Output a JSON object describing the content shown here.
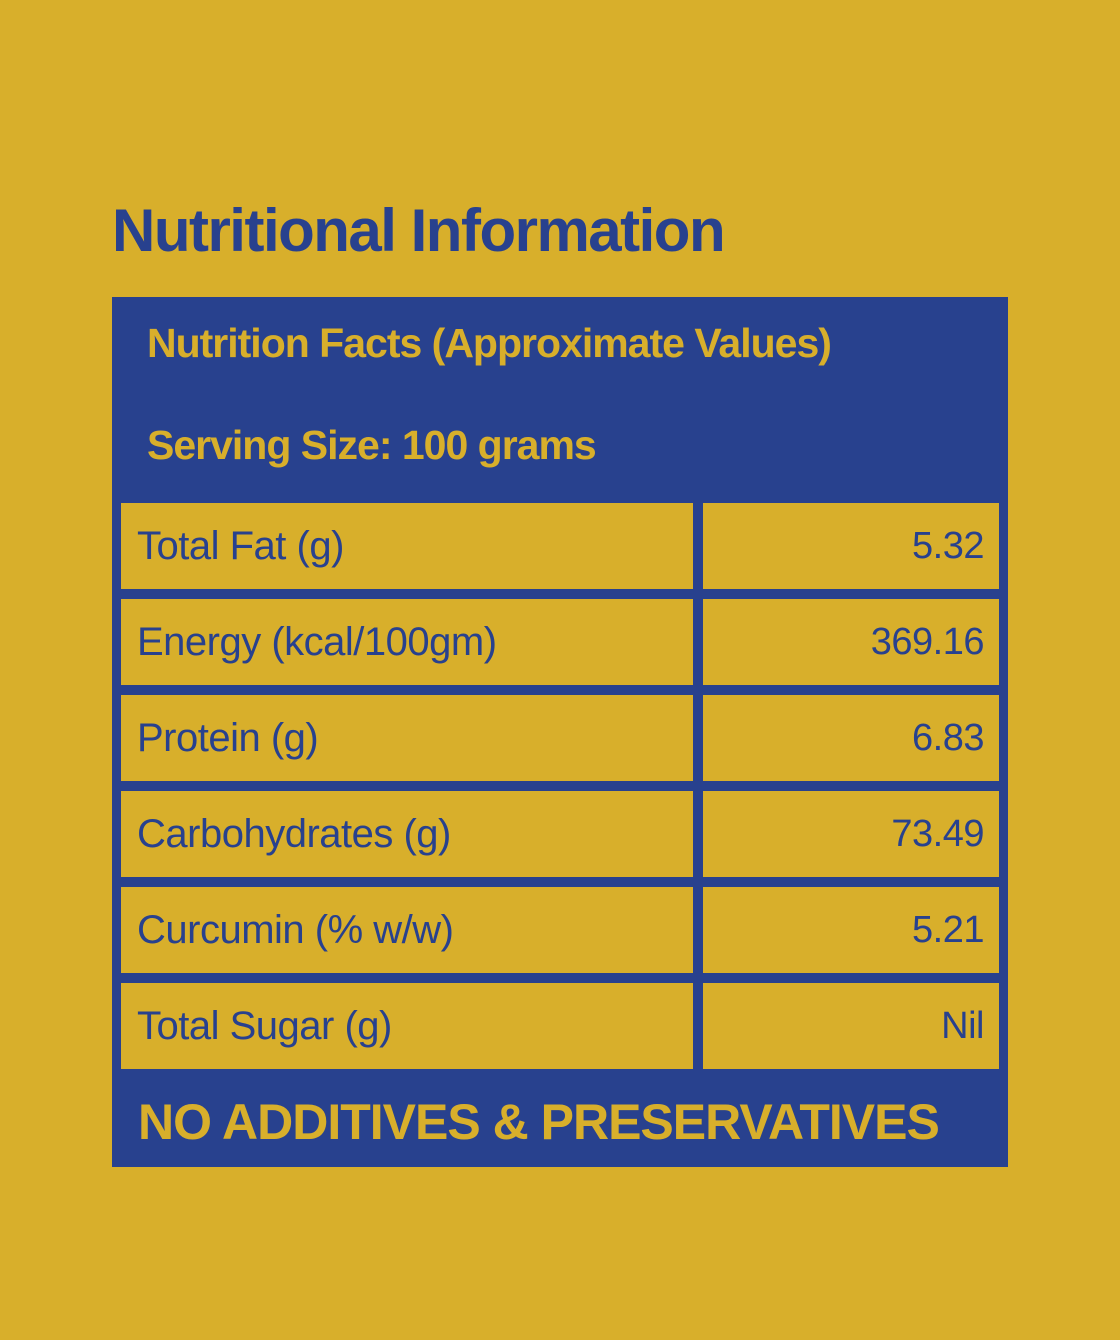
{
  "page": {
    "title": "Nutritional Information"
  },
  "card": {
    "header": {
      "title": "Nutrition Facts (Approximate Values)",
      "serving_size": "Serving Size: 100 grams"
    },
    "rows": [
      {
        "label": "Total Fat (g)",
        "value": "5.32"
      },
      {
        "label": "Energy (kcal/100gm)",
        "value": "369.16"
      },
      {
        "label": "Protein (g)",
        "value": "6.83"
      },
      {
        "label": "Carbohydrates (g)",
        "value": "73.49"
      },
      {
        "label": "Curcumin (% w/w)",
        "value": "5.21"
      },
      {
        "label": "Total Sugar (g)",
        "value": "Nil"
      }
    ],
    "footer": "NO ADDITIVES & PRESERVATIVES"
  },
  "colors": {
    "background_gold": "#D8AF2B",
    "primary_blue": "#28418E",
    "cell_gold": "#D8AF2B"
  }
}
